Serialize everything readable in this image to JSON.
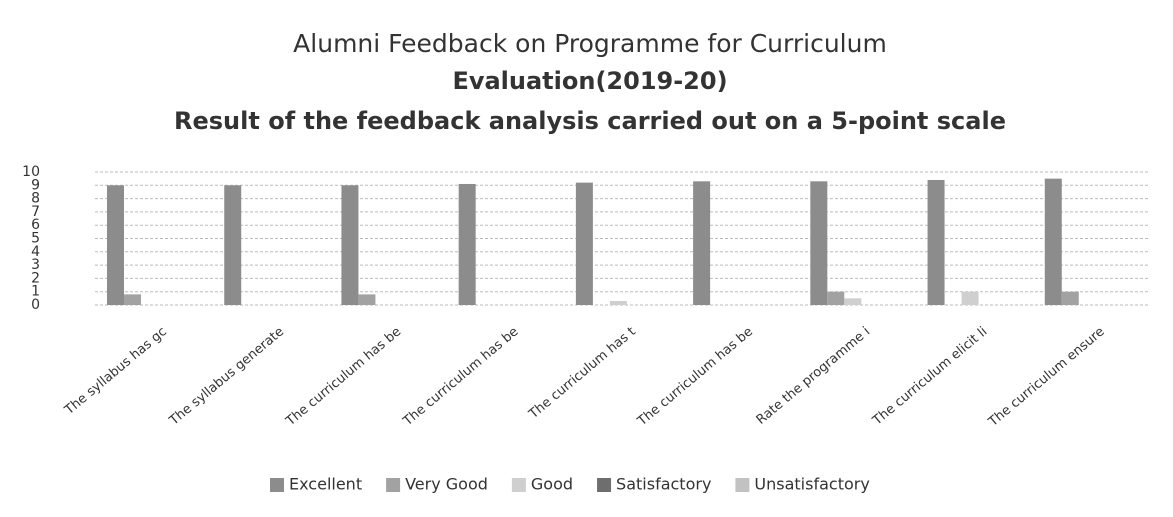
{
  "chart_data": {
    "type": "bar",
    "title": [
      "Alumni Feedback on Programme for Curriculum",
      "Evaluation(2019-20)"
    ],
    "subtitle": "Result of the feedback analysis carried out on a 5-point scale",
    "categories": [
      "The  syllabus  has  gc",
      "The syllabus generate",
      "The curriculum has be",
      "The curriculum has be",
      "The  curriculum  has  t",
      "The curriculum has be",
      "Rate the programme i",
      "The curriculum elicit li",
      "The curriculum ensure"
    ],
    "series": [
      {
        "name": "Excellent",
        "color": "#8c8c8c",
        "values": [
          9,
          9,
          9,
          9.1,
          9.2,
          9.3,
          9.3,
          9.4,
          9.5
        ]
      },
      {
        "name": "Very Good",
        "color": "#a2a2a2",
        "values": [
          0.8,
          0,
          0.8,
          0,
          0,
          0,
          1,
          0,
          1
        ]
      },
      {
        "name": "Good",
        "color": "#cfcfcf",
        "values": [
          0,
          0,
          0,
          0,
          0.3,
          0,
          0.5,
          1,
          0
        ]
      },
      {
        "name": "Satisfactory",
        "color": "#6e6e6e",
        "values": [
          0,
          0,
          0,
          0,
          0,
          0,
          0,
          0,
          0
        ]
      },
      {
        "name": "Unsatisfactory",
        "color": "#c2c2c2",
        "values": [
          0,
          0,
          0,
          0,
          0,
          0,
          0,
          0,
          0
        ]
      }
    ],
    "ylim": [
      0,
      10
    ],
    "yticks": [
      0,
      1,
      2,
      3,
      4,
      5,
      6,
      7,
      8,
      9,
      10
    ],
    "grid": true,
    "legend": "bottom"
  }
}
